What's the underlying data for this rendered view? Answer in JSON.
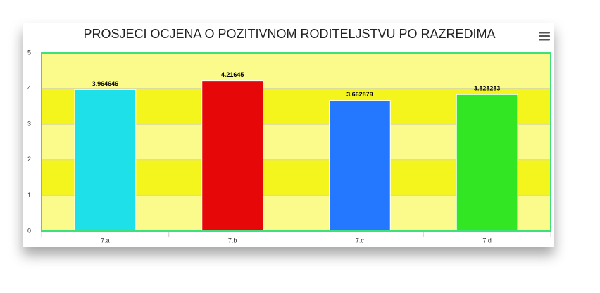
{
  "chart_data": {
    "type": "bar",
    "title": "PROSJECI OCJENA O POZITIVNOM RODITELJSTVU PO RAZREDIMA",
    "categories": [
      "7.a",
      "7.b",
      "7.c",
      "7.d"
    ],
    "values": [
      3.964646,
      4.21645,
      3.662879,
      3.828283
    ],
    "colors": [
      "#1ee0e8",
      "#e60808",
      "#2477ff",
      "#33e624"
    ],
    "ylim": [
      0,
      5
    ],
    "yticks": [
      0,
      1,
      2,
      3,
      4,
      5
    ],
    "band_colors": [
      "#fbfb8c",
      "#f5f51e"
    ],
    "plot_border_color": "#3de07a",
    "data_labels": true
  }
}
